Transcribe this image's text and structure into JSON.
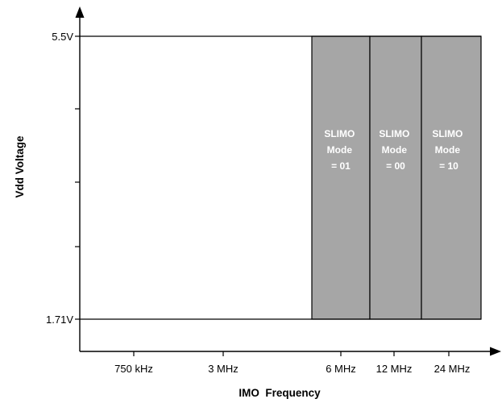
{
  "diagram": {
    "y_axis_title": "Vdd Voltage",
    "x_axis_title": "IMO  Frequency",
    "y_labels": {
      "top": "5.5V",
      "bottom": "1.71V"
    },
    "x_labels": [
      "750 kHz",
      "3 MHz",
      "6 MHz",
      "12 MHz",
      "24 MHz"
    ],
    "regions": [
      {
        "lines": [
          "SLIMO",
          "Mode",
          "= 01"
        ]
      },
      {
        "lines": [
          "SLIMO",
          "Mode",
          "= 00"
        ]
      },
      {
        "lines": [
          "SLIMO",
          "Mode",
          "= 10"
        ]
      }
    ],
    "colors": {
      "region_fill": "#a6a6a6",
      "region_text": "#ffffff",
      "axis": "#000000"
    }
  }
}
